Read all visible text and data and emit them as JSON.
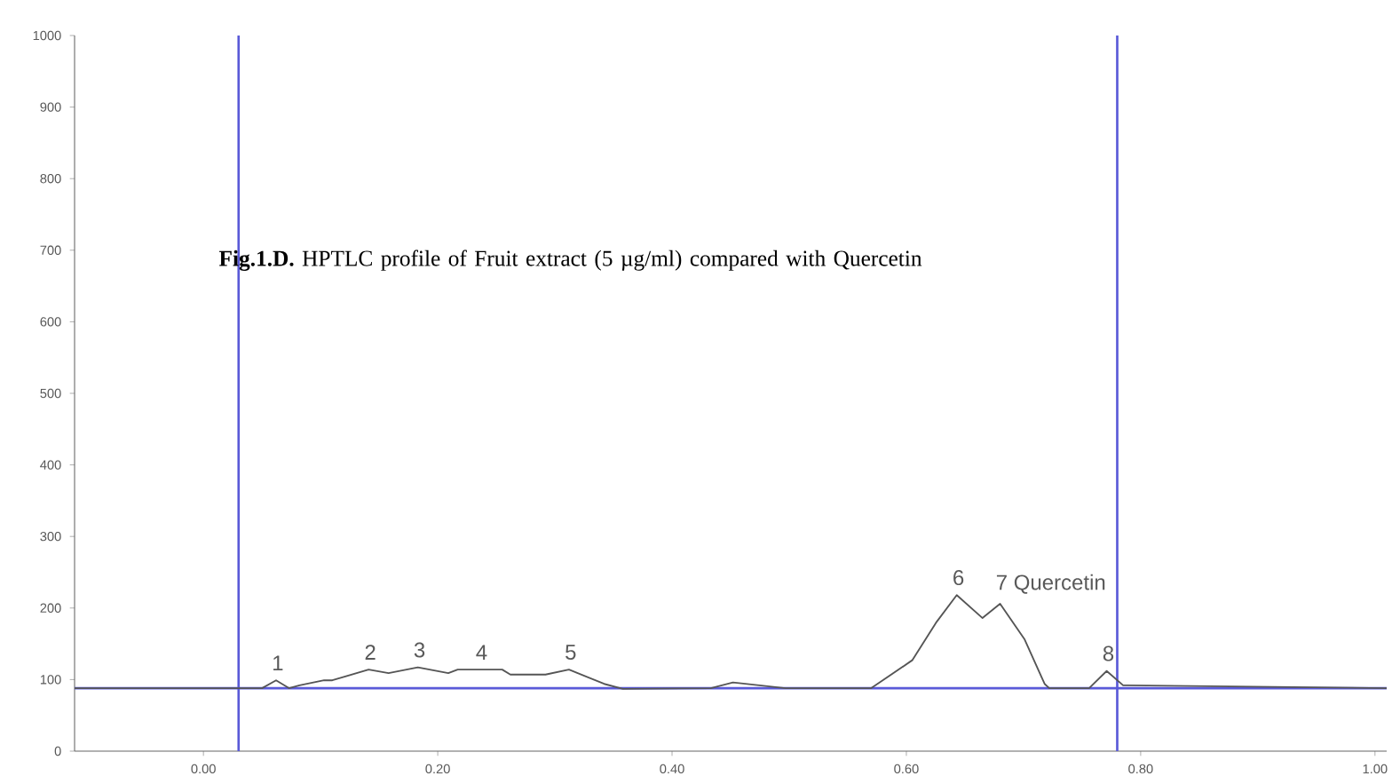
{
  "chart_data": {
    "type": "line",
    "x": [
      -0.11,
      0.05,
      0.062,
      0.073,
      0.082,
      0.103,
      0.11,
      0.141,
      0.158,
      0.183,
      0.209,
      0.217,
      0.255,
      0.262,
      0.292,
      0.312,
      0.342,
      0.358,
      0.433,
      0.452,
      0.497,
      0.57,
      0.605,
      0.626,
      0.643,
      0.665,
      0.68,
      0.701,
      0.718,
      0.722,
      0.756,
      0.771,
      0.785,
      1.01
    ],
    "series": [
      {
        "color": "#555555",
        "values": [
          88,
          88,
          99,
          88,
          92,
          99,
          99,
          114,
          109,
          117,
          109,
          114,
          114,
          107,
          107,
          114,
          94,
          87,
          88,
          96,
          88,
          88,
          127,
          181,
          218,
          186,
          206,
          156,
          94,
          88,
          88,
          112,
          92,
          88
        ]
      }
    ],
    "xlim": [
      -0.11,
      1.01
    ],
    "ylim": [
      0,
      1000
    ],
    "xticks": [
      {
        "value": 0,
        "label": "0.00"
      },
      {
        "value": 0.2,
        "label": "0.20"
      },
      {
        "value": 0.4,
        "label": "0.40"
      },
      {
        "value": 0.6,
        "label": "0.60"
      },
      {
        "value": 0.8,
        "label": "0.80"
      },
      {
        "value": 1,
        "label": "1.00"
      }
    ],
    "yticks": [
      0,
      100,
      200,
      300,
      400,
      500,
      600,
      700,
      800,
      900,
      1000
    ],
    "ref_lines": [
      {
        "axis": "y",
        "value": 88,
        "color": "#5a5ad8"
      },
      {
        "axis": "x",
        "value": 0.03,
        "color": "#5a5ad8"
      },
      {
        "axis": "x",
        "value": 0.78,
        "color": "#5a5ad8"
      }
    ],
    "annotations": [
      "**Fig.1.D.** HPTLC profile of Fruit extract (5 µg/ml) compared with Quercetin",
      {
        "text": "1",
        "x": 0.062,
        "y": 99
      },
      {
        "text": "2",
        "x": 0.141,
        "y": 114
      },
      {
        "text": "3",
        "x": 0.183,
        "y": 117
      },
      {
        "text": "4",
        "x": 0.236,
        "y": 114
      },
      {
        "text": "5",
        "x": 0.312,
        "y": 114
      },
      {
        "text": "6",
        "x": 0.643,
        "y": 218
      },
      {
        "text": "7 Quercetin",
        "x": 0.68,
        "y": 206
      },
      {
        "text": "8",
        "x": 0.771,
        "y": 112
      }
    ],
    "marker": "none",
    "line_style": "solid"
  }
}
